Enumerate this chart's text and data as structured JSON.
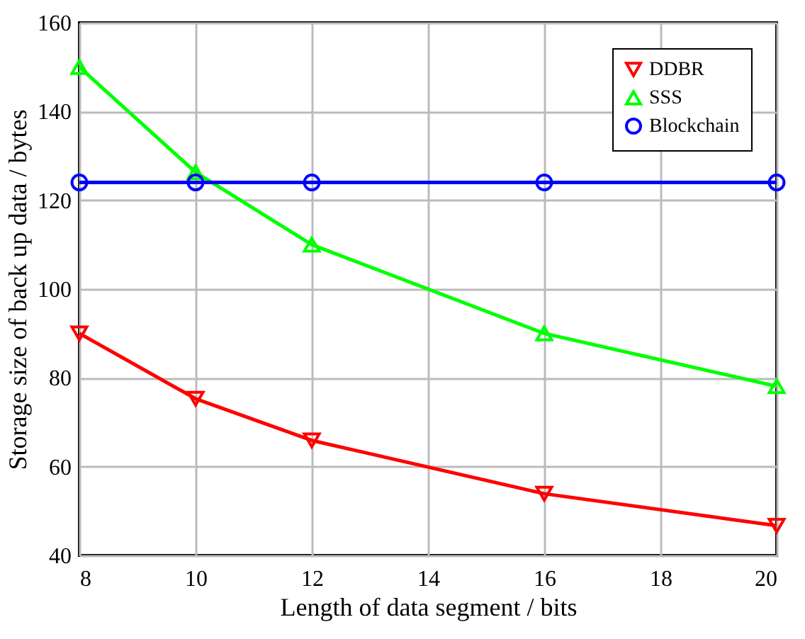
{
  "chart_data": {
    "type": "line",
    "xlabel": "Length of data segment / bits",
    "ylabel": "Storage size of back up data / bytes",
    "x": [
      8,
      10,
      12,
      16,
      20
    ],
    "xlim": [
      8,
      20
    ],
    "xticks": [
      8,
      10,
      12,
      14,
      16,
      18,
      20
    ],
    "ylim": [
      40,
      160
    ],
    "yticks": [
      40,
      60,
      80,
      100,
      120,
      140,
      160
    ],
    "grid": true,
    "legend": "top right",
    "line_style": "solid",
    "series": [
      {
        "name": "DDBR",
        "color": "#ff0000",
        "marker": "triangle-down",
        "values": [
          90,
          75.3,
          65.9,
          53.9,
          46.7
        ]
      },
      {
        "name": "SSS",
        "color": "#00ff00",
        "marker": "triangle",
        "values": [
          150,
          126.3,
          110,
          90,
          78.1
        ]
      },
      {
        "name": "Blockchain",
        "color": "#0000ff",
        "marker": "circle",
        "values": [
          124,
          124,
          124,
          124,
          124
        ]
      }
    ]
  }
}
